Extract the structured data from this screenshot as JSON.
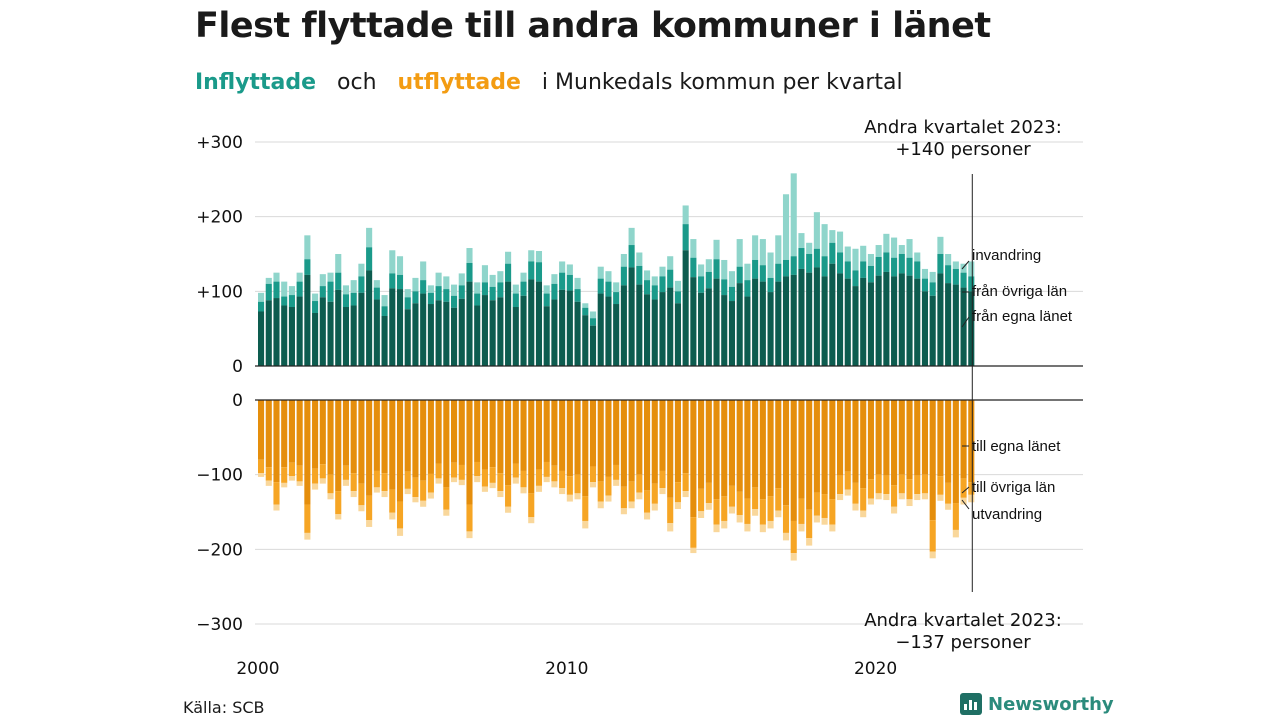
{
  "title": "Flest flyttade till andra kommuner i länet",
  "subtitle": {
    "in_word": "Inflyttade",
    "and_word": "och",
    "out_word": "utflyttade",
    "rest": "i Munkedals kommun per kvartal"
  },
  "source": "Källa: SCB",
  "brand": "Newsworthy",
  "chart_data": {
    "type": "bar",
    "stacked": true,
    "x_start_year": 2000,
    "x_end": "2023 Q2",
    "x_ticks": [
      "2000",
      "2010",
      "2020"
    ],
    "y_top_ticks": [
      "+300",
      "+200",
      "+100",
      "0"
    ],
    "y_bottom_ticks": [
      "0",
      "−100",
      "−200",
      "−300"
    ],
    "y_top_range": [
      0,
      300
    ],
    "y_bottom_range": [
      -300,
      0
    ],
    "colors": {
      "in_own": "#0d5c4f",
      "in_other": "#1a9a8a",
      "in_immigration": "#8fd5cb",
      "out_own": "#e58e0c",
      "out_other": "#f6a524",
      "out_emigration": "#f9d79b"
    },
    "inflow_labels": [
      "invandring",
      "från övriga län",
      "från egna länet"
    ],
    "outflow_labels": [
      "till egna länet",
      "till övriga län",
      "utvandring"
    ],
    "series_in_total": [
      98,
      118,
      125,
      113,
      107,
      125,
      175,
      97,
      123,
      125,
      150,
      108,
      115,
      137,
      185,
      115,
      95,
      155,
      147,
      103,
      118,
      140,
      108,
      125,
      120,
      109,
      124,
      158,
      112,
      135,
      122,
      127,
      153,
      109,
      125,
      155,
      154,
      108,
      123,
      140,
      136,
      118,
      84,
      73,
      133,
      127,
      112,
      150,
      185,
      152,
      128,
      120,
      133,
      147,
      114,
      215,
      170,
      136,
      143,
      169,
      142,
      127,
      170,
      137,
      175,
      170,
      152,
      175,
      230,
      258,
      178,
      165,
      206,
      190,
      182,
      180,
      160,
      157,
      161,
      150,
      162,
      177,
      172,
      162,
      170,
      152,
      130,
      126,
      173,
      150,
      140,
      137,
      140
    ],
    "series_in_own_other": [
      86,
      110,
      113,
      93,
      95,
      113,
      143,
      87,
      107,
      113,
      125,
      96,
      98,
      120,
      159,
      105,
      80,
      124,
      122,
      92,
      100,
      115,
      98,
      107,
      103,
      94,
      108,
      138,
      97,
      112,
      106,
      112,
      137,
      97,
      113,
      140,
      139,
      97,
      110,
      125,
      122,
      103,
      78,
      64,
      117,
      113,
      99,
      133,
      162,
      134,
      115,
      108,
      120,
      129,
      100,
      190,
      145,
      120,
      126,
      143,
      116,
      106,
      133,
      115,
      142,
      135,
      118,
      137,
      142,
      147,
      158,
      150,
      157,
      147,
      165,
      152,
      140,
      128,
      140,
      134,
      146,
      152,
      145,
      150,
      145,
      140,
      117,
      112,
      150,
      135,
      130,
      125,
      120
    ],
    "series_in_own": [
      73,
      88,
      91,
      81,
      79,
      93,
      122,
      71,
      92,
      86,
      102,
      79,
      81,
      98,
      128,
      89,
      67,
      104,
      103,
      76,
      84,
      97,
      83,
      88,
      86,
      78,
      90,
      113,
      81,
      95,
      88,
      92,
      113,
      79,
      94,
      116,
      113,
      80,
      89,
      102,
      101,
      86,
      68,
      54,
      97,
      93,
      83,
      108,
      132,
      109,
      96,
      89,
      99,
      105,
      84,
      155,
      119,
      98,
      104,
      117,
      95,
      87,
      111,
      93,
      117,
      113,
      99,
      113,
      120,
      122,
      130,
      125,
      132,
      120,
      137,
      124,
      117,
      107,
      118,
      112,
      121,
      126,
      120,
      124,
      121,
      117,
      100,
      94,
      124,
      111,
      109,
      105,
      100
    ],
    "series_out_total": [
      -103,
      -115,
      -148,
      -117,
      -108,
      -115,
      -187,
      -120,
      -112,
      -133,
      -160,
      -115,
      -130,
      -149,
      -170,
      -124,
      -130,
      -160,
      -182,
      -126,
      -137,
      -143,
      -132,
      -112,
      -155,
      -110,
      -114,
      -185,
      -110,
      -123,
      -118,
      -130,
      -151,
      -112,
      -125,
      -165,
      -123,
      -110,
      -117,
      -126,
      -136,
      -133,
      -172,
      -117,
      -145,
      -136,
      -115,
      -153,
      -145,
      -133,
      -160,
      -148,
      -126,
      -176,
      -146,
      -130,
      -205,
      -158,
      -147,
      -177,
      -172,
      -152,
      -164,
      -176,
      -155,
      -177,
      -172,
      -157,
      -188,
      -215,
      -176,
      -195,
      -164,
      -167,
      -176,
      -134,
      -128,
      -148,
      -157,
      -140,
      -133,
      -134,
      -152,
      -133,
      -142,
      -134,
      -133,
      -212,
      -135,
      -147,
      -184,
      -140,
      -137
    ],
    "series_out_own_other": [
      -98,
      -108,
      -140,
      -111,
      -102,
      -109,
      -178,
      -112,
      -105,
      -125,
      -153,
      -107,
      -122,
      -141,
      -161,
      -117,
      -122,
      -151,
      -172,
      -119,
      -130,
      -135,
      -124,
      -105,
      -147,
      -104,
      -107,
      -176,
      -102,
      -116,
      -111,
      -122,
      -143,
      -104,
      -117,
      -157,
      -115,
      -103,
      -109,
      -118,
      -127,
      -125,
      -162,
      -110,
      -136,
      -128,
      -107,
      -145,
      -136,
      -124,
      -151,
      -139,
      -118,
      -165,
      -137,
      -122,
      -198,
      -149,
      -138,
      -167,
      -162,
      -143,
      -154,
      -166,
      -146,
      -167,
      -162,
      -148,
      -178,
      -205,
      -166,
      -185,
      -155,
      -158,
      -167,
      -126,
      -120,
      -139,
      -148,
      -132,
      -125,
      -126,
      -143,
      -125,
      -133,
      -126,
      -125,
      -203,
      -127,
      -139,
      -174,
      -131,
      -127
    ],
    "series_out_own": [
      -80,
      -90,
      -110,
      -90,
      -84,
      -88,
      -140,
      -92,
      -86,
      -100,
      -122,
      -88,
      -98,
      -112,
      -128,
      -95,
      -98,
      -120,
      -136,
      -96,
      -104,
      -108,
      -99,
      -85,
      -117,
      -84,
      -87,
      -140,
      -83,
      -93,
      -90,
      -98,
      -114,
      -85,
      -95,
      -125,
      -93,
      -83,
      -88,
      -95,
      -102,
      -100,
      -129,
      -89,
      -109,
      -103,
      -87,
      -116,
      -109,
      -100,
      -121,
      -112,
      -95,
      -131,
      -110,
      -98,
      -157,
      -119,
      -111,
      -133,
      -129,
      -115,
      -123,
      -132,
      -117,
      -133,
      -129,
      -118,
      -141,
      -162,
      -132,
      -147,
      -124,
      -126,
      -133,
      -101,
      -96,
      -111,
      -118,
      -106,
      -100,
      -101,
      -114,
      -100,
      -106,
      -101,
      -100,
      -161,
      -102,
      -111,
      -138,
      -105,
      -110
    ],
    "annotation_top": [
      "Andra kvartalet 2023:",
      "+140 personer"
    ],
    "annotation_bottom": [
      "Andra kvartalet 2023:",
      "−137 personer"
    ]
  }
}
